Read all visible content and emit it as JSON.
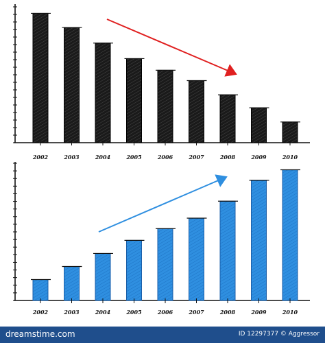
{
  "chart_data": [
    {
      "type": "bar",
      "categories": [
        "2002",
        "2003",
        "2004",
        "2005",
        "2006",
        "2007",
        "2008",
        "2009",
        "2010"
      ],
      "values": [
        100,
        89,
        77,
        65,
        56,
        48,
        37,
        27,
        16
      ],
      "ylim": [
        0,
        105
      ],
      "grid": false,
      "bar_color": "#111111",
      "annotation": {
        "kind": "arrow",
        "direction": "down",
        "color": "#e02020"
      }
    },
    {
      "type": "bar",
      "categories": [
        "2002",
        "2003",
        "2004",
        "2005",
        "2006",
        "2007",
        "2008",
        "2009",
        "2010"
      ],
      "values": [
        16,
        26,
        36,
        46,
        55,
        63,
        76,
        92,
        100
      ],
      "ylim": [
        0,
        105
      ],
      "grid": false,
      "bar_color": "#2f8fe0",
      "annotation": {
        "kind": "arrow",
        "direction": "up",
        "color": "#2f8fe0"
      }
    }
  ],
  "footer": {
    "site": "dreamstime.com",
    "credit": "ID 12297377 © Aggressor"
  }
}
